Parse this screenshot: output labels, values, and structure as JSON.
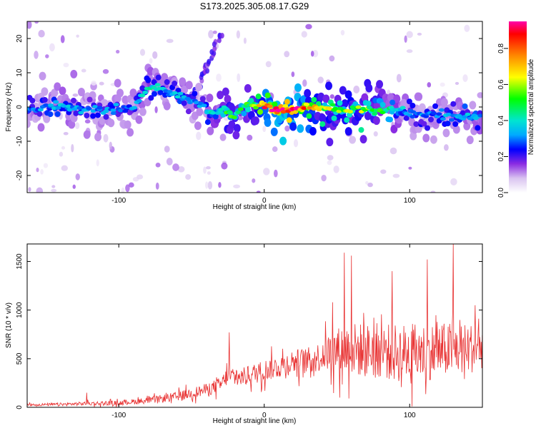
{
  "title": "S173.2025.305.08.17.G29",
  "colors": {
    "snr_line": "#e83030",
    "axis": "#000000"
  },
  "chart_data": [
    {
      "type": "heatmap",
      "name": "spectrogram",
      "xlabel": "Height of straight line (km)",
      "ylabel": "Frequency (Hz)",
      "xlim": [
        -163,
        150
      ],
      "ylim": [
        -25,
        25
      ],
      "x_ticks": [
        -100,
        0,
        100
      ],
      "x_tick_labels": [
        "-100",
        "0",
        "100"
      ],
      "y_ticks": [
        -20,
        -10,
        0,
        10,
        20
      ],
      "y_tick_labels": [
        "-20",
        "-10",
        "0",
        "10",
        "20"
      ],
      "colorbar": {
        "label": "Normalized spectral amplitude",
        "range": [
          0,
          0.95
        ],
        "ticks": [
          0,
          0.2,
          0.4,
          0.6,
          0.8
        ],
        "tick_labels": [
          "0.0",
          "0.2",
          "0.4",
          "0.6",
          "0.8"
        ],
        "stops": [
          {
            "v": 0.0,
            "c": "#ffffff"
          },
          {
            "v": 0.08,
            "c": "#d9c3f0"
          },
          {
            "v": 0.16,
            "c": "#8a2be2"
          },
          {
            "v": 0.24,
            "c": "#0000ff"
          },
          {
            "v": 0.32,
            "c": "#00aaff"
          },
          {
            "v": 0.4,
            "c": "#00e5d0"
          },
          {
            "v": 0.52,
            "c": "#00ff00"
          },
          {
            "v": 0.64,
            "c": "#ffff00"
          },
          {
            "v": 0.76,
            "c": "#ff8800"
          },
          {
            "v": 0.88,
            "c": "#ff0000"
          },
          {
            "v": 0.95,
            "c": "#ff00aa"
          }
        ]
      },
      "ridge": {
        "x": [
          -163,
          -140,
          -120,
          -100,
          -90,
          -80,
          -70,
          -60,
          -50,
          -40,
          -35,
          -30,
          -25,
          -20,
          -15,
          -10,
          -5,
          0,
          10,
          20,
          30,
          40,
          50,
          60,
          70,
          80,
          90,
          100,
          110,
          120,
          130,
          140,
          150
        ],
        "freq": [
          -1,
          0,
          -0.5,
          -1,
          0,
          6,
          5,
          4,
          2,
          0,
          -2,
          -1,
          -2,
          -3,
          0,
          0.5,
          0,
          0.5,
          -1,
          -0.5,
          0,
          -0.5,
          -1,
          -1,
          -0.5,
          -1,
          -0.5,
          -2,
          -3,
          -2,
          -3,
          -3,
          -2.5
        ],
        "amplitude": [
          0.3,
          0.35,
          0.3,
          0.3,
          0.3,
          0.4,
          0.35,
          0.35,
          0.3,
          0.3,
          0.45,
          0.45,
          0.55,
          0.5,
          0.5,
          0.55,
          0.65,
          0.85,
          0.95,
          0.9,
          0.75,
          0.6,
          0.6,
          0.6,
          0.55,
          0.5,
          0.4,
          0.3,
          0.3,
          0.3,
          0.35,
          0.35,
          0.35
        ]
      }
    },
    {
      "type": "line",
      "name": "snr",
      "xlabel": "Height of straight line (km)",
      "ylabel": "SNR (10 * v/v)",
      "xlim": [
        -163,
        150
      ],
      "ylim": [
        0,
        1680
      ],
      "x_ticks": [
        -100,
        0,
        100
      ],
      "x_tick_labels": [
        "-100",
        "0",
        "100"
      ],
      "y_ticks": [
        0,
        500,
        1000,
        1500
      ],
      "y_tick_labels": [
        "0",
        "500",
        "1000",
        "1500"
      ],
      "envelope": {
        "x": [
          -163,
          -140,
          -120,
          -100,
          -80,
          -60,
          -40,
          -30,
          -25,
          -20,
          -15,
          -10,
          0,
          10,
          20,
          30,
          40,
          45,
          50,
          55,
          60,
          70,
          80,
          90,
          100,
          110,
          120,
          130,
          140,
          150
        ],
        "mean": [
          25,
          30,
          40,
          45,
          70,
          110,
          180,
          230,
          330,
          300,
          310,
          330,
          380,
          420,
          470,
          480,
          530,
          570,
          580,
          600,
          600,
          580,
          590,
          560,
          560,
          570,
          580,
          600,
          600,
          640
        ],
        "spread": [
          15,
          20,
          25,
          30,
          40,
          60,
          80,
          100,
          120,
          110,
          120,
          130,
          140,
          150,
          160,
          170,
          200,
          250,
          300,
          330,
          350,
          350,
          360,
          380,
          380,
          370,
          360,
          350,
          330,
          300
        ]
      },
      "peaks": [
        {
          "x": -122,
          "y": 150
        },
        {
          "x": -24,
          "y": 770
        },
        {
          "x": 47,
          "y": 1080
        },
        {
          "x": 55,
          "y": 1590
        },
        {
          "x": 60,
          "y": 1560
        },
        {
          "x": 88,
          "y": 1400
        },
        {
          "x": 112,
          "y": 1520
        },
        {
          "x": 130,
          "y": 1680
        },
        {
          "x": 145,
          "y": 1050
        }
      ]
    }
  ]
}
